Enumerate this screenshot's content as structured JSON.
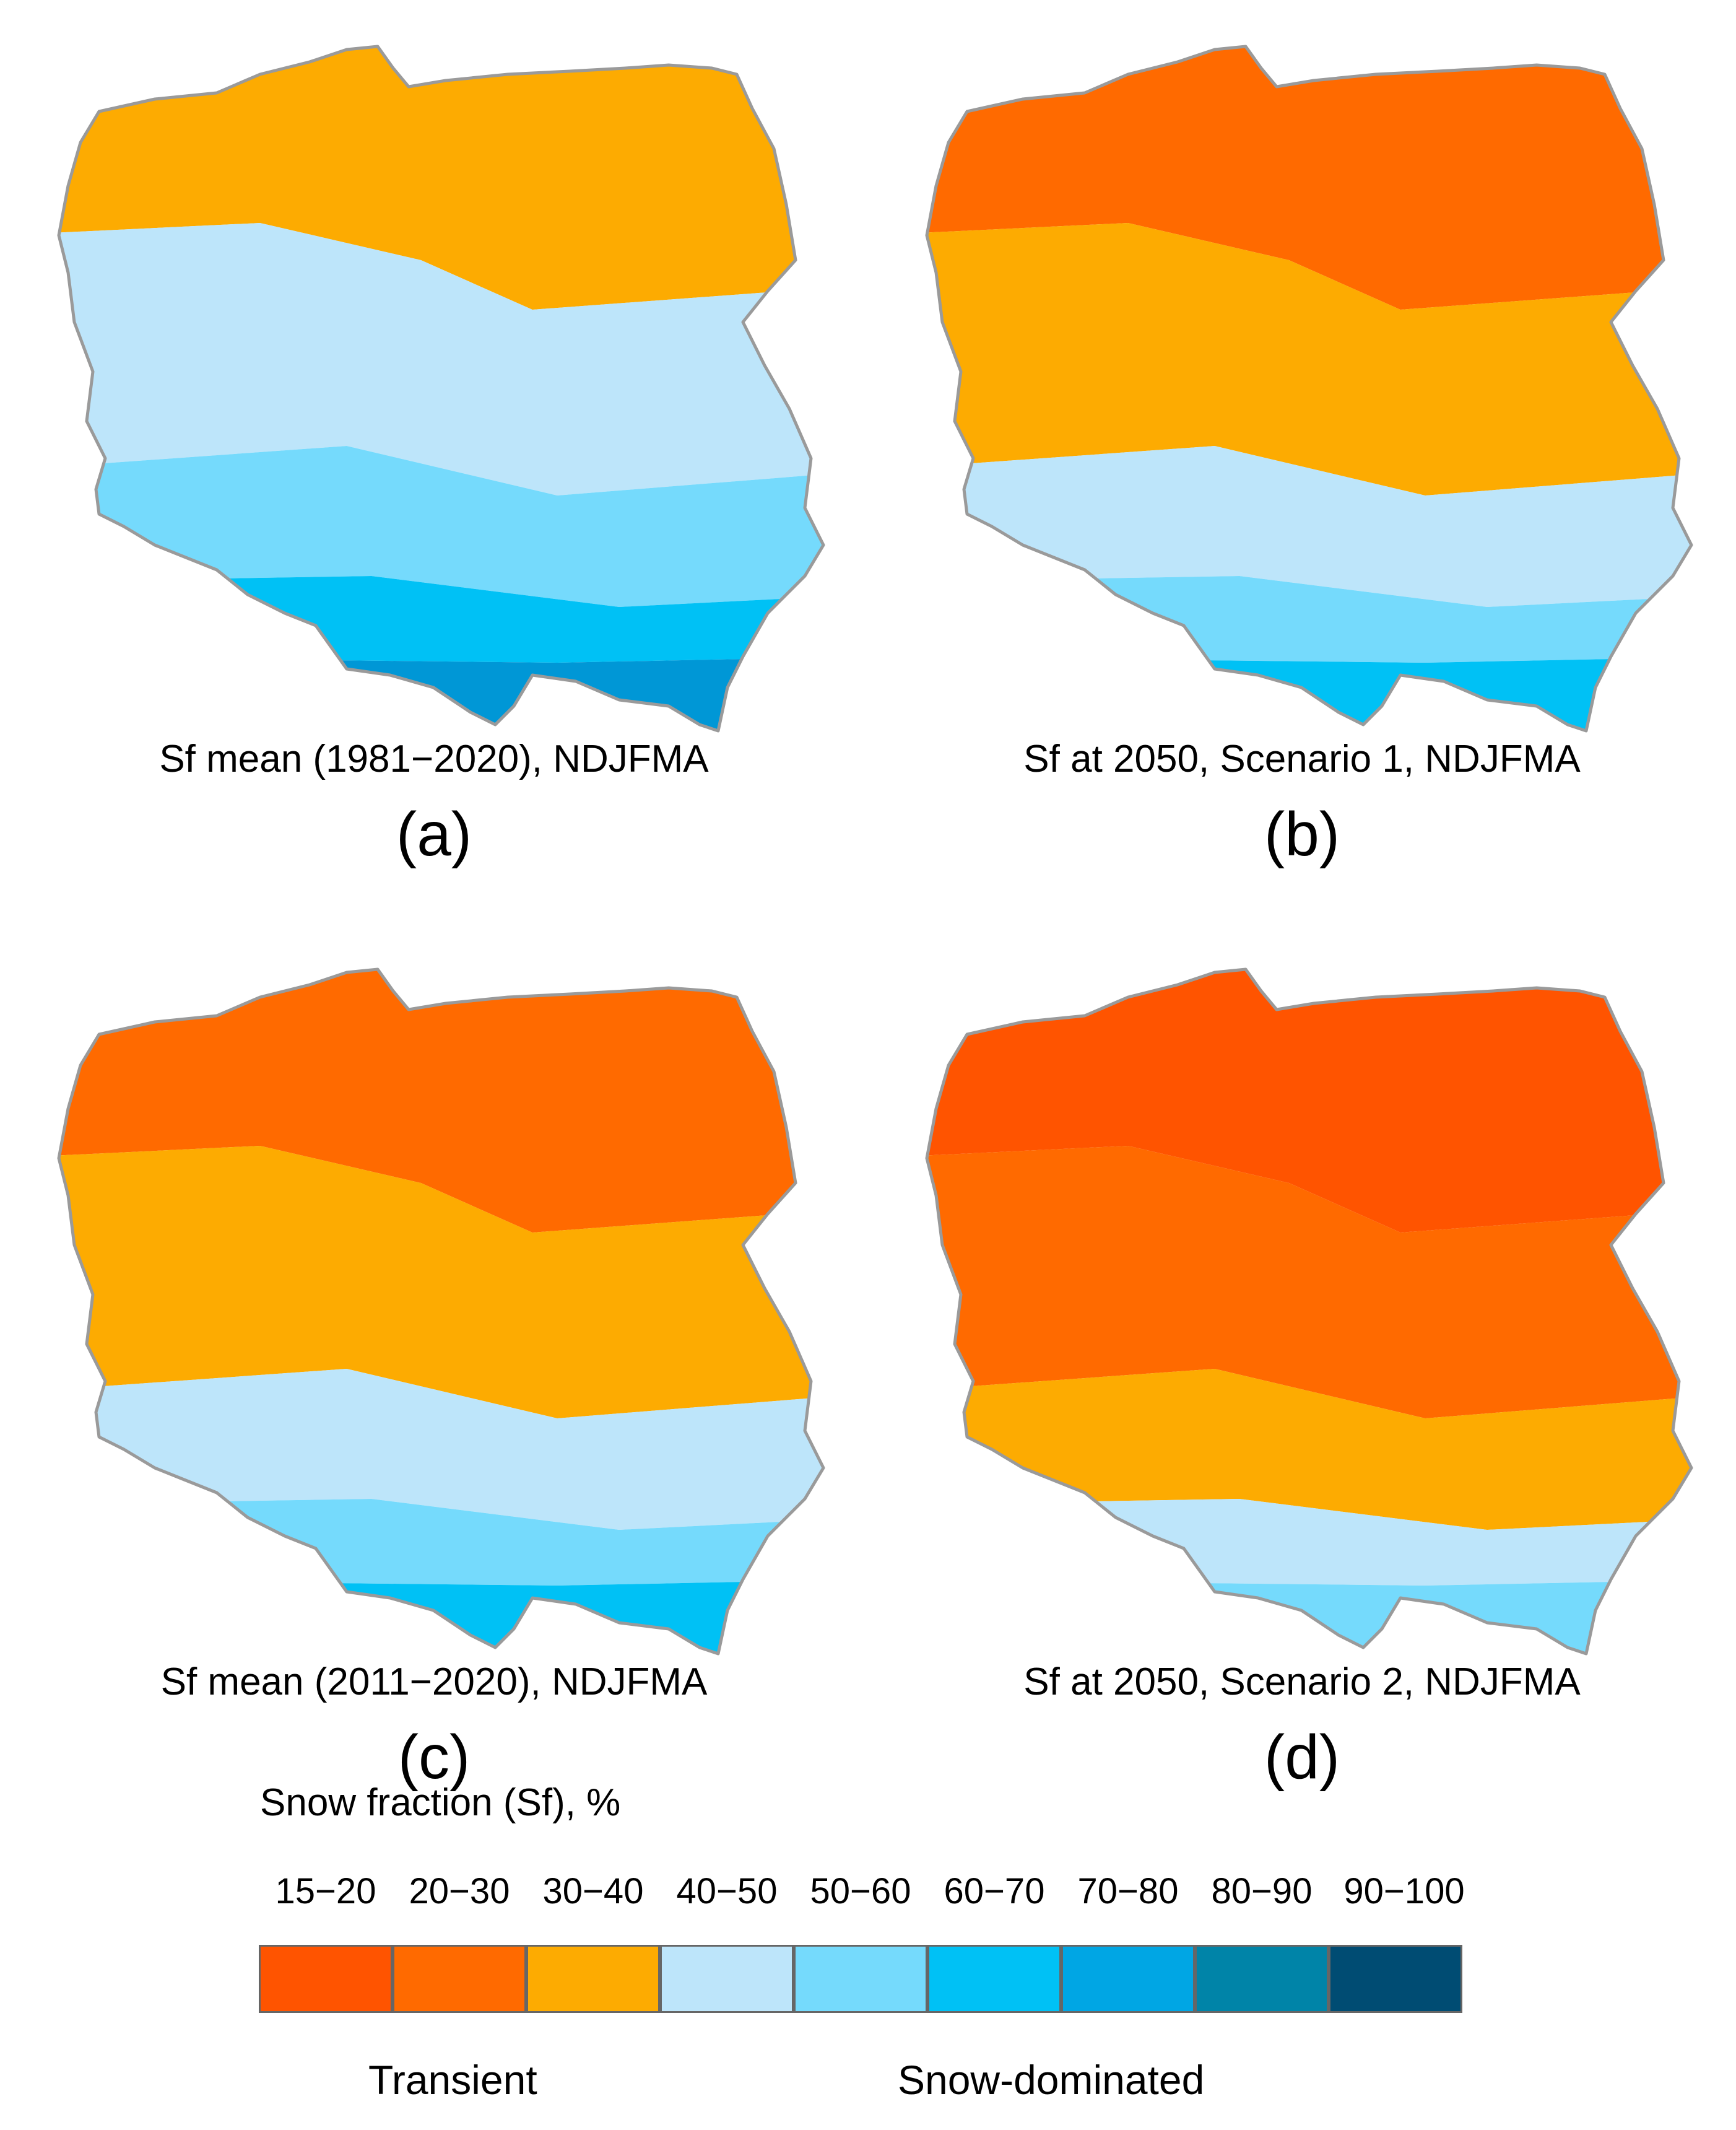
{
  "panels": [
    {
      "caption": "Sf mean (1981−2020), NDJFMA",
      "letter": "(a)",
      "zones": [
        "#fdab01",
        "#bde5fa",
        "#75dafc",
        "#00c1f5",
        "#0097d6"
      ]
    },
    {
      "caption": "Sf at 2050, Scenario 1, NDJFMA",
      "letter": "(b)",
      "zones": [
        "#ff6a00",
        "#fdab01",
        "#bde5fa",
        "#75dafc",
        "#00c1f5"
      ]
    },
    {
      "caption": "Sf mean (2011−2020), NDJFMA",
      "letter": "(c)",
      "zones": [
        "#ff6a00",
        "#fdab01",
        "#bde5fa",
        "#75dafc",
        "#00c1f5"
      ]
    },
    {
      "caption": "Sf at 2050, Scenario 2, NDJFMA",
      "letter": "(d)",
      "zones": [
        "#ff5400",
        "#ff6a00",
        "#fdab01",
        "#bde5fa",
        "#75dafc"
      ]
    }
  ],
  "legend": {
    "title": "Snow fraction (Sf), %",
    "bins": [
      {
        "label": "15−20",
        "color": "#ff5400"
      },
      {
        "label": "20−30",
        "color": "#ff6a00"
      },
      {
        "label": "30−40",
        "color": "#fdab01"
      },
      {
        "label": "40−50",
        "color": "#bde5fa"
      },
      {
        "label": "50−60",
        "color": "#75dafc"
      },
      {
        "label": "60−70",
        "color": "#00c1f5"
      },
      {
        "label": "70−80",
        "color": "#00a6e4"
      },
      {
        "label": "80−90",
        "color": "#0084a8"
      },
      {
        "label": "90−100",
        "color": "#004c73"
      }
    ],
    "low_label": "Transient",
    "high_label": "Snow-dominated"
  }
}
